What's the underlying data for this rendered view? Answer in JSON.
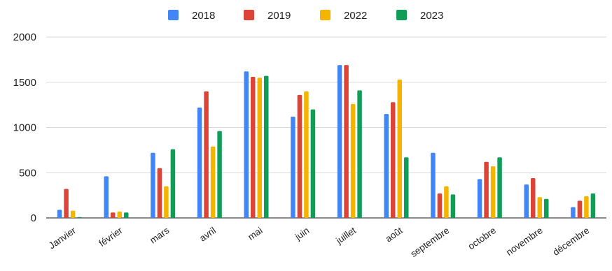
{
  "chart_data": {
    "type": "bar",
    "title": "",
    "xlabel": "",
    "ylabel": "",
    "ylim": [
      0,
      2000
    ],
    "yticks": [
      0,
      500,
      1000,
      1500,
      2000
    ],
    "grid": true,
    "legend_position": "top",
    "categories": [
      "Janvier",
      "février",
      "mars",
      "avril",
      "mai",
      "juin",
      "juillet",
      "août",
      "septembre",
      "octobre",
      "novembre",
      "décembre"
    ],
    "series": [
      {
        "name": "2018",
        "color": "#4285F4",
        "values": [
          90,
          460,
          720,
          1220,
          1620,
          1120,
          1690,
          1150,
          720,
          430,
          370,
          120
        ]
      },
      {
        "name": "2019",
        "color": "#DB4437",
        "values": [
          320,
          60,
          550,
          1400,
          1560,
          1360,
          1690,
          1280,
          270,
          620,
          440,
          190
        ]
      },
      {
        "name": "2022",
        "color": "#F4B400",
        "values": [
          80,
          70,
          350,
          790,
          1550,
          1400,
          1260,
          1530,
          350,
          570,
          230,
          240
        ]
      },
      {
        "name": "2023",
        "color": "#0F9D58",
        "values": [
          10,
          60,
          760,
          960,
          1570,
          1200,
          1410,
          670,
          260,
          670,
          210,
          270
        ]
      }
    ]
  }
}
